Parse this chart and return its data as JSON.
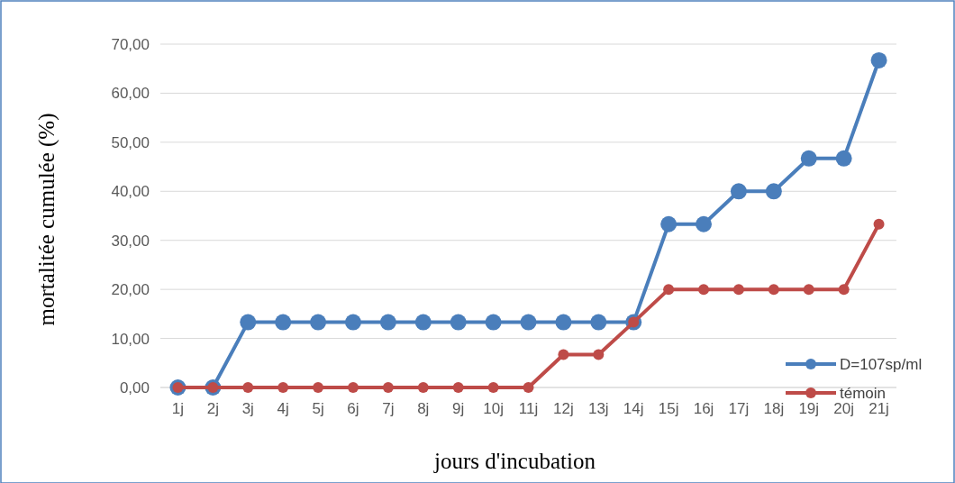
{
  "chart_data": {
    "type": "line",
    "xlabel": "jours d'incubation",
    "ylabel": "mortalitée cumulée (%)",
    "categories": [
      "1j",
      "2j",
      "3j",
      "4j",
      "5j",
      "6j",
      "7j",
      "8j",
      "9j",
      "10j",
      "11j",
      "12j",
      "13j",
      "14j",
      "15j",
      "16j",
      "17j",
      "18j",
      "19j",
      "20j",
      "21j"
    ],
    "series": [
      {
        "name": "D=107sp/ml",
        "color": "#4a7ebb",
        "values": [
          0,
          0,
          13.3,
          13.3,
          13.3,
          13.3,
          13.3,
          13.3,
          13.3,
          13.3,
          13.3,
          13.3,
          13.3,
          13.3,
          33.3,
          33.3,
          40,
          40,
          46.7,
          46.7,
          66.7
        ]
      },
      {
        "name": "témoin",
        "color": "#be4b48",
        "values": [
          0,
          0,
          0,
          0,
          0,
          0,
          0,
          0,
          0,
          0,
          0,
          6.7,
          6.7,
          13.3,
          20,
          20,
          20,
          20,
          20,
          20,
          33.3
        ]
      }
    ],
    "ylim": [
      0,
      70
    ],
    "yticks": [
      {
        "value": 0,
        "label": "0,00"
      },
      {
        "value": 10,
        "label": "10,00"
      },
      {
        "value": 20,
        "label": "20,00"
      },
      {
        "value": 30,
        "label": "30,00"
      },
      {
        "value": 40,
        "label": "40,00"
      },
      {
        "value": 50,
        "label": "50,00"
      },
      {
        "value": 60,
        "label": "60,00"
      },
      {
        "value": 70,
        "label": "70,00"
      }
    ],
    "grid": "y",
    "legend": "bottom right",
    "marker": "circle",
    "line_style": "solid"
  }
}
